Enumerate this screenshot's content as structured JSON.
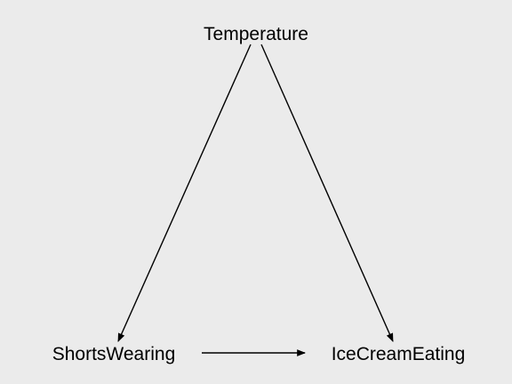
{
  "nodes": {
    "temperature": "Temperature",
    "shorts_wearing": "ShortsWearing",
    "ice_cream_eating": "IceCreamEating"
  },
  "edges": [
    {
      "from": "Temperature",
      "to": "ShortsWearing"
    },
    {
      "from": "Temperature",
      "to": "IceCreamEating"
    },
    {
      "from": "ShortsWearing",
      "to": "IceCreamEating"
    }
  ],
  "colors": {
    "background": "#ebebeb",
    "ink": "#000000"
  }
}
